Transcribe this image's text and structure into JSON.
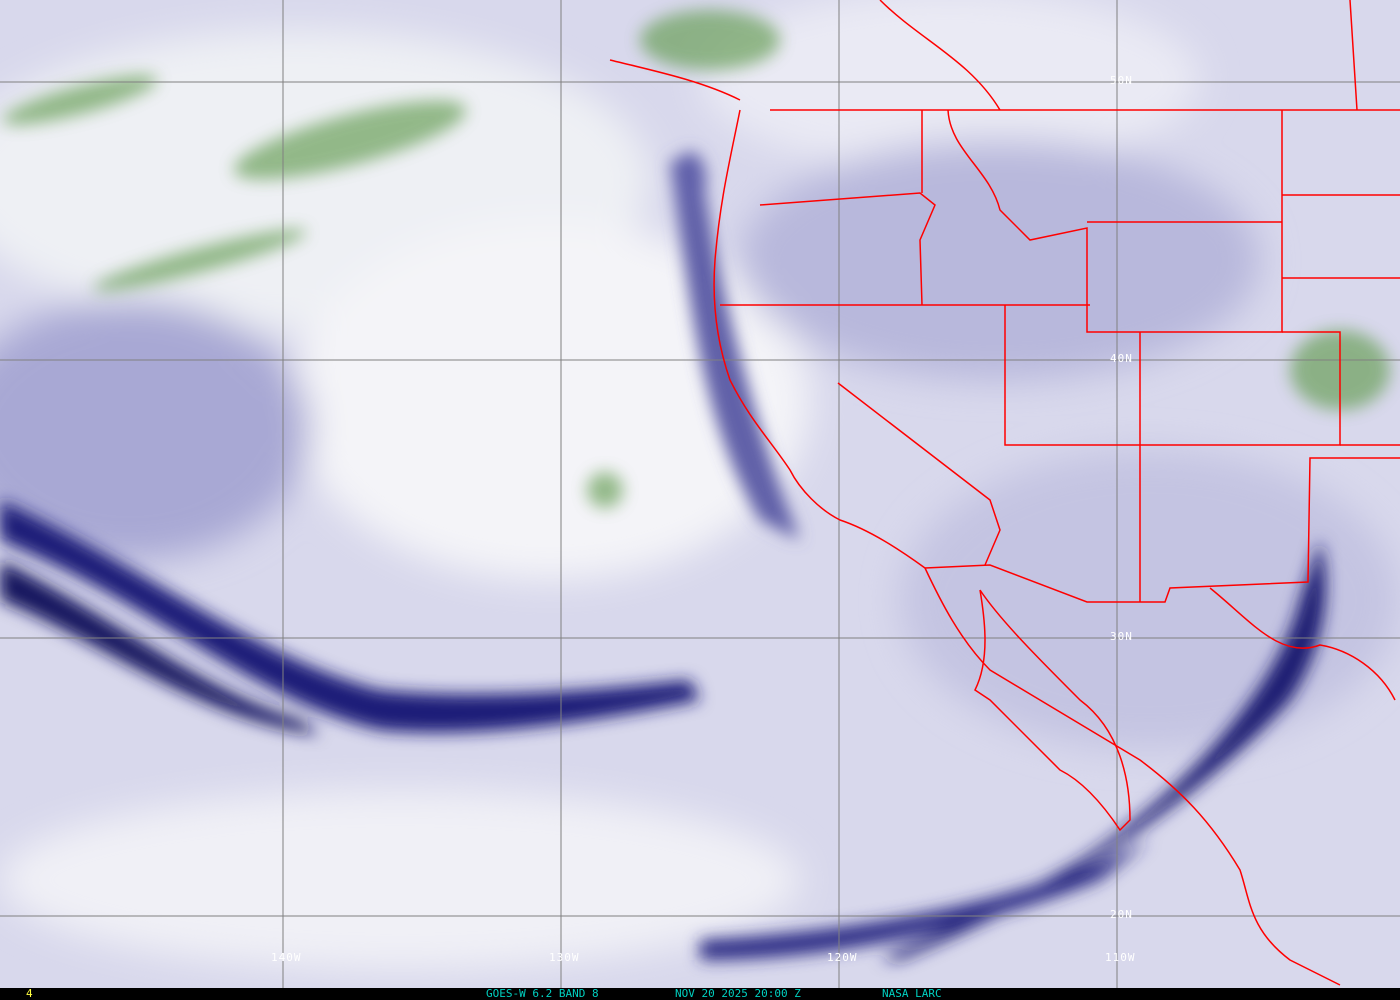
{
  "image": {
    "type": "satellite water vapor imagery",
    "colors": {
      "dry": "#1a1a6e",
      "moist": "#f0f0f8",
      "cloud": "#5e9a4e",
      "borders": "#ff0000",
      "grid": "#808080",
      "caption": "#00d0c0",
      "frame_number": "#ffff40"
    }
  },
  "grid": {
    "longitudes": [
      "140W",
      "130W",
      "120W",
      "110W"
    ],
    "latitudes": [
      "50N",
      "40N",
      "30N",
      "20N"
    ]
  },
  "caption": {
    "frame": "4",
    "satellite": "GOES-W 6.2 BAND 8",
    "datetime": "NOV 20 2025 20:00 Z",
    "source": "NASA LARC"
  }
}
